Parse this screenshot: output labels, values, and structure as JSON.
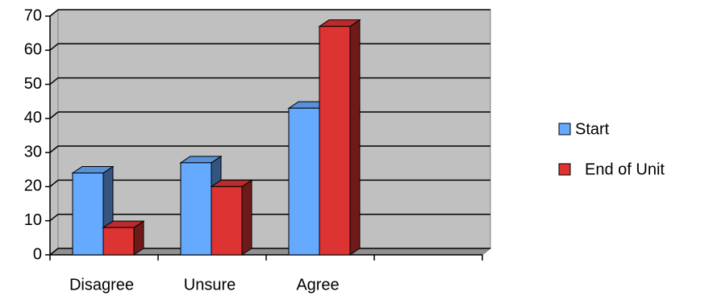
{
  "chart_data": {
    "type": "bar3d",
    "categories": [
      "Disagree",
      "Unsure",
      "Agree",
      null
    ],
    "series": [
      {
        "name": "Start",
        "color": "#66aaff",
        "values": [
          24,
          27,
          43,
          null
        ]
      },
      {
        "name": "End of Unit",
        "color": "#dd3333",
        "values": [
          8,
          20,
          67,
          null
        ]
      }
    ],
    "ylim": [
      0,
      70
    ],
    "yticks": [
      0,
      10,
      20,
      30,
      40,
      50,
      60,
      70
    ],
    "grid": true,
    "legend": "right"
  }
}
